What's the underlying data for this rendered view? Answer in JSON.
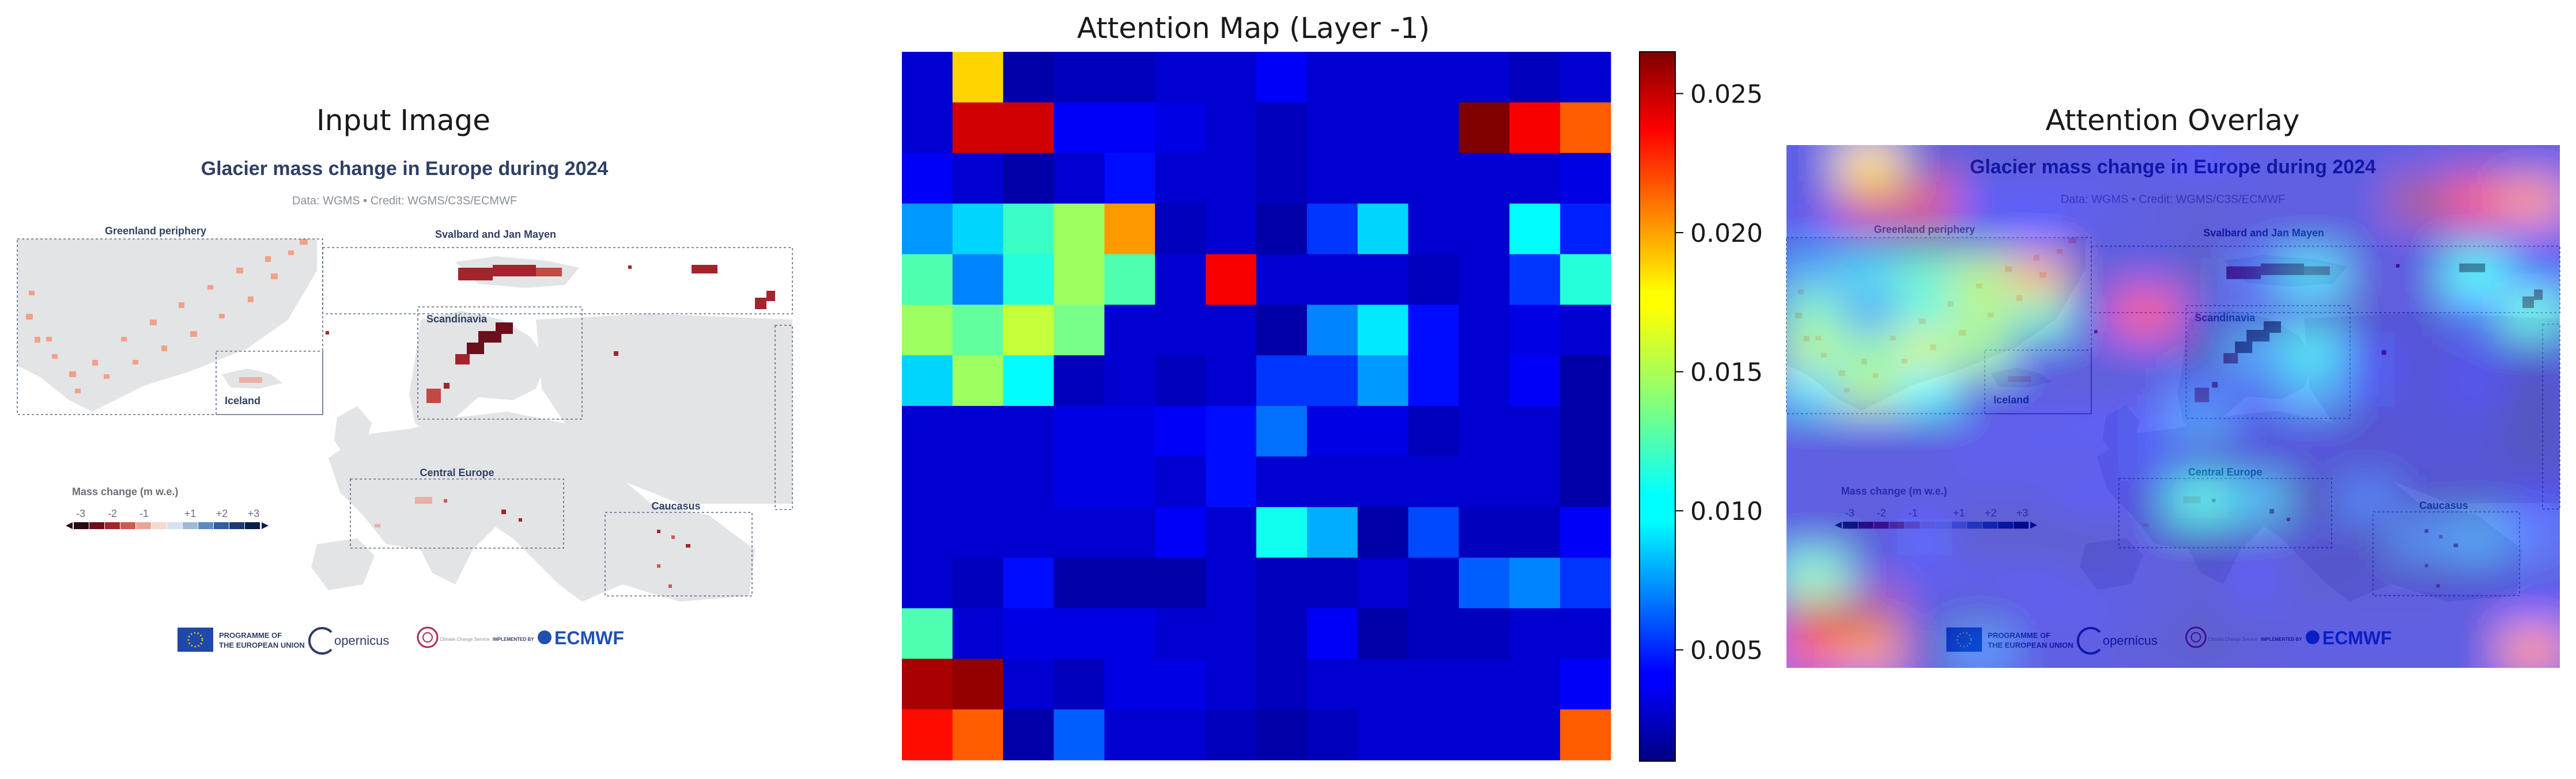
{
  "titles": {
    "input": "Input Image",
    "attention": "Attention Map (Layer -1)",
    "overlay": "Attention Overlay"
  },
  "infographic": {
    "title": "Glacier mass change in Europe during 2024",
    "subtitle": "Data: WGMS • Credit: WGMS/C3S/ECMWF",
    "regions": {
      "greenland": "Greenland periphery",
      "svalbard": "Svalbard and Jan Mayen",
      "scandinavia": "Scandinavia",
      "iceland": "Iceland",
      "central_europe": "Central Europe",
      "caucasus": "Caucasus"
    },
    "legend_title": "Mass change (m w.e.)",
    "legend_ticks": [
      "-3",
      "-2",
      "-1",
      "+1",
      "+2",
      "+3"
    ],
    "legend_colors": [
      "#2a0a12",
      "#6b0f1a",
      "#a3242c",
      "#cc5a4f",
      "#e8a596",
      "#f6d8d0",
      "#d6e2ef",
      "#9dbad8",
      "#5b8cc0",
      "#2f5e9e",
      "#1c3a72",
      "#0c1d4a"
    ],
    "logos": {
      "eu_line1": "PROGRAMME OF",
      "eu_line2": "THE EUROPEAN UNION",
      "copernicus": "opernicus",
      "climate": "Climate Change Service",
      "implemented_by": "IMPLEMENTED BY",
      "ecmwf": "ECMWF"
    }
  },
  "chart_data": {
    "type": "heatmap",
    "title": "Attention Map (Layer -1)",
    "colormap": "jet",
    "vmin": 0.001,
    "vmax": 0.0265,
    "colorbar_ticks": [
      "0.005",
      "0.010",
      "0.015",
      "0.020",
      "0.025"
    ],
    "colorbar_tick_values": [
      0.005,
      0.01,
      0.015,
      0.02,
      0.025
    ],
    "rows": 14,
    "cols": 14,
    "values": [
      [
        0.003,
        0.018,
        0.002,
        0.0025,
        0.0025,
        0.003,
        0.003,
        0.004,
        0.003,
        0.003,
        0.003,
        0.003,
        0.0025,
        0.003
      ],
      [
        0.003,
        0.0245,
        0.0245,
        0.004,
        0.004,
        0.0035,
        0.003,
        0.0025,
        0.003,
        0.003,
        0.003,
        0.0265,
        0.0235,
        0.021
      ],
      [
        0.004,
        0.003,
        0.002,
        0.003,
        0.0045,
        0.003,
        0.003,
        0.0025,
        0.003,
        0.003,
        0.003,
        0.003,
        0.003,
        0.0035
      ],
      [
        0.008,
        0.0095,
        0.012,
        0.0145,
        0.0195,
        0.0025,
        0.003,
        0.002,
        0.0055,
        0.0095,
        0.003,
        0.003,
        0.0105,
        0.005
      ],
      [
        0.0125,
        0.0075,
        0.0115,
        0.0145,
        0.0125,
        0.003,
        0.0235,
        0.003,
        0.003,
        0.003,
        0.0025,
        0.003,
        0.0055,
        0.0115
      ],
      [
        0.0145,
        0.013,
        0.0155,
        0.0135,
        0.003,
        0.003,
        0.003,
        0.002,
        0.0075,
        0.01,
        0.0045,
        0.003,
        0.0035,
        0.003
      ],
      [
        0.0095,
        0.0145,
        0.0105,
        0.0025,
        0.003,
        0.0025,
        0.003,
        0.0055,
        0.0055,
        0.008,
        0.0045,
        0.003,
        0.004,
        0.002
      ],
      [
        0.003,
        0.003,
        0.003,
        0.0035,
        0.0035,
        0.004,
        0.0045,
        0.007,
        0.0035,
        0.0035,
        0.0025,
        0.003,
        0.003,
        0.002
      ],
      [
        0.003,
        0.003,
        0.003,
        0.0035,
        0.0035,
        0.003,
        0.0045,
        0.003,
        0.003,
        0.003,
        0.003,
        0.003,
        0.003,
        0.002
      ],
      [
        0.003,
        0.003,
        0.003,
        0.003,
        0.003,
        0.004,
        0.003,
        0.011,
        0.0085,
        0.002,
        0.006,
        0.0025,
        0.0025,
        0.004
      ],
      [
        0.003,
        0.0025,
        0.0045,
        0.002,
        0.002,
        0.002,
        0.003,
        0.0025,
        0.0025,
        0.003,
        0.0025,
        0.0065,
        0.0075,
        0.0055
      ],
      [
        0.0125,
        0.003,
        0.0035,
        0.0035,
        0.0035,
        0.003,
        0.003,
        0.0025,
        0.004,
        0.002,
        0.0025,
        0.0025,
        0.003,
        0.003
      ],
      [
        0.0255,
        0.026,
        0.003,
        0.0025,
        0.0035,
        0.0035,
        0.003,
        0.0025,
        0.003,
        0.003,
        0.003,
        0.003,
        0.003,
        0.004
      ],
      [
        0.023,
        0.021,
        0.002,
        0.0065,
        0.003,
        0.003,
        0.0025,
        0.002,
        0.0025,
        0.003,
        0.003,
        0.003,
        0.003,
        0.021
      ]
    ]
  }
}
